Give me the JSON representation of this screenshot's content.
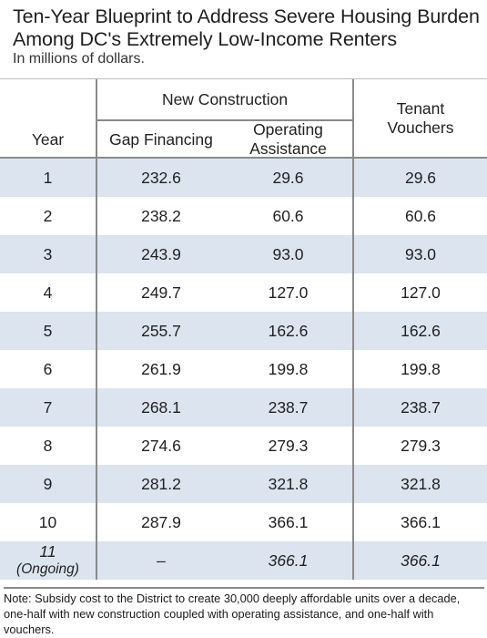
{
  "title": "Ten-Year Blueprint to Address Severe Housing Burden Among DC's Extremely Low-Income Renters",
  "subtitle": "In millions of dollars.",
  "headers": {
    "year": "Year",
    "new_construction": "New Construction",
    "gap_financing": "Gap Financing",
    "operating_assistance": "Operating Assistance",
    "tenant_vouchers": "Tenant Vouchers"
  },
  "rows": [
    {
      "year": "1",
      "gap": "232.6",
      "op": "29.6",
      "vouch": "29.6"
    },
    {
      "year": "2",
      "gap": "238.2",
      "op": "60.6",
      "vouch": "60.6"
    },
    {
      "year": "3",
      "gap": "243.9",
      "op": "93.0",
      "vouch": "93.0"
    },
    {
      "year": "4",
      "gap": "249.7",
      "op": "127.0",
      "vouch": "127.0"
    },
    {
      "year": "5",
      "gap": "255.7",
      "op": "162.6",
      "vouch": "162.6"
    },
    {
      "year": "6",
      "gap": "261.9",
      "op": "199.8",
      "vouch": "199.8"
    },
    {
      "year": "7",
      "gap": "268.1",
      "op": "238.7",
      "vouch": "238.7"
    },
    {
      "year": "8",
      "gap": "274.6",
      "op": "279.3",
      "vouch": "279.3"
    },
    {
      "year": "9",
      "gap": "281.2",
      "op": "321.8",
      "vouch": "321.8"
    },
    {
      "year": "10",
      "gap": "287.9",
      "op": "366.1",
      "vouch": "366.1"
    }
  ],
  "ongoing": {
    "year": "11",
    "year_sub": "(Ongoing)",
    "gap": "–",
    "op": "366.1",
    "vouch": "366.1"
  },
  "note": "Note: Subsidy cost to the District to create 30,000 deeply affordable units over a decade, one-half with new construction coupled with operating assistance, and one-half with vouchers."
}
